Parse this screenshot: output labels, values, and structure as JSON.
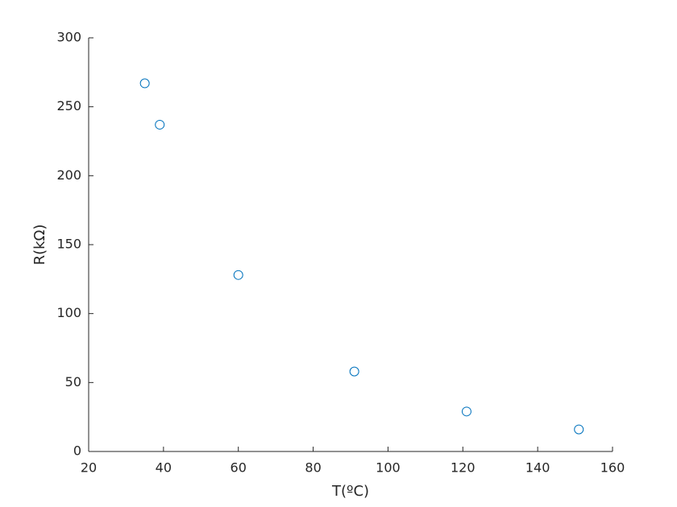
{
  "chart_data": {
    "type": "scatter",
    "xlabel": "T(ºC)",
    "ylabel": "R(kΩ)",
    "series": [
      {
        "x": [
          35,
          39,
          60,
          91,
          121,
          151
        ],
        "values": [
          267,
          237,
          128,
          58,
          29,
          16
        ],
        "color": "#0072bd"
      }
    ],
    "xlim": [
      20,
      160
    ],
    "xticks": [
      20,
      40,
      60,
      80,
      100,
      120,
      140,
      160
    ],
    "ylim": [
      0,
      300
    ],
    "yticks": [
      0,
      50,
      100,
      150,
      200,
      250,
      300
    ],
    "grid": false
  }
}
